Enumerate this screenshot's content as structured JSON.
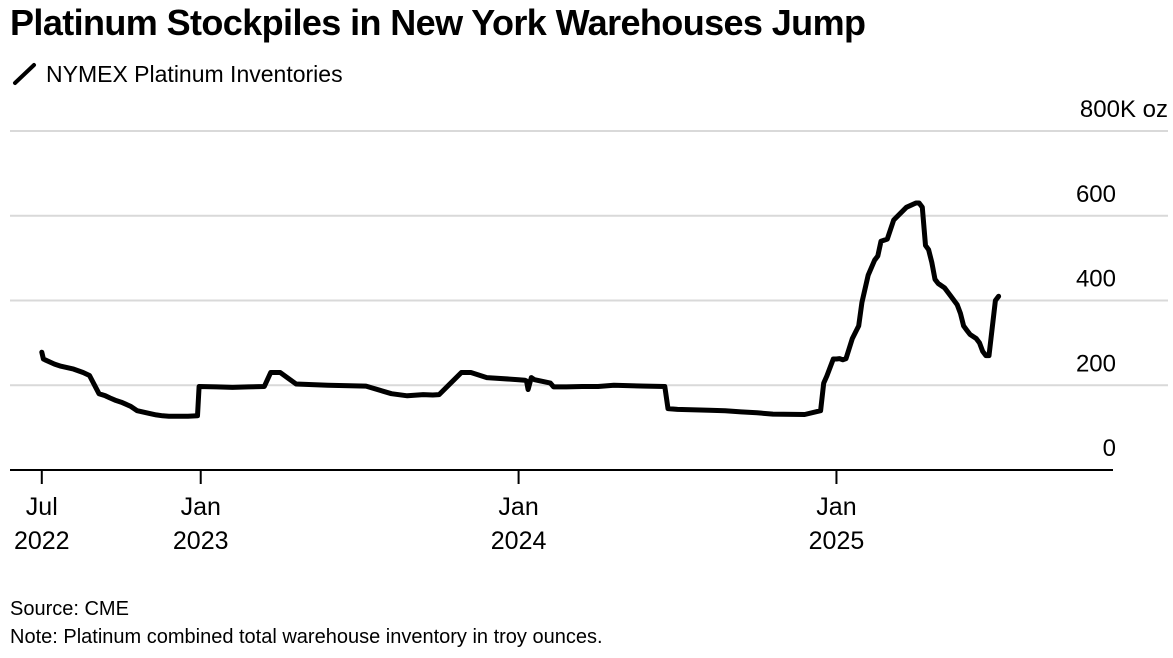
{
  "title": "Platinum Stockpiles in New York Warehouses Jump",
  "legend": {
    "label": "NYMEX Platinum Inventories",
    "color": "#000000"
  },
  "source": "Source: CME",
  "note": "Note: Platinum combined total warehouse inventory in troy ounces.",
  "chart_data": {
    "type": "line",
    "title": "Platinum Stockpiles in New York Warehouses Jump",
    "series": [
      {
        "name": "NYMEX Platinum Inventories",
        "color": "#000000",
        "x": [
          2022.5,
          2022.505,
          2022.51,
          2022.54,
          2022.56,
          2022.6,
          2022.63,
          2022.65,
          2022.68,
          2022.7,
          2022.715,
          2022.73,
          2022.75,
          2022.78,
          2022.8,
          2022.84,
          2022.86,
          2022.88,
          2022.9,
          2022.93,
          2022.96,
          2022.99,
          2022.995,
          2023.05,
          2023.1,
          2023.15,
          2023.2,
          2023.22,
          2023.25,
          2023.3,
          2023.4,
          2023.52,
          2023.6,
          2023.65,
          2023.7,
          2023.73,
          2023.75,
          2023.82,
          2023.85,
          2023.9,
          2024.0,
          2024.02,
          2024.025,
          2024.03,
          2024.04,
          2024.05,
          2024.1,
          2024.11,
          2024.15,
          2024.2,
          2024.25,
          2024.3,
          2024.4,
          2024.46,
          2024.47,
          2024.5,
          2024.6,
          2024.65,
          2024.7,
          2024.75,
          2024.8,
          2024.9,
          2024.95,
          2024.96,
          2024.97,
          2024.99,
          2025.0,
          2025.01,
          2025.02,
          2025.03,
          2025.05,
          2025.07,
          2025.08,
          2025.1,
          2025.12,
          2025.13,
          2025.14,
          2025.16,
          2025.18,
          2025.22,
          2025.25,
          2025.26,
          2025.27,
          2025.28,
          2025.29,
          2025.3,
          2025.31,
          2025.32,
          2025.34,
          2025.36,
          2025.38,
          2025.39,
          2025.4,
          2025.41,
          2025.42,
          2025.44,
          2025.45,
          2025.46,
          2025.47,
          2025.48,
          2025.5,
          2025.51
        ],
        "values": [
          278,
          262,
          260,
          250,
          245,
          238,
          230,
          223,
          180,
          175,
          170,
          165,
          160,
          150,
          140,
          133,
          130,
          128,
          127,
          127,
          127,
          128,
          197,
          196,
          195,
          196,
          197,
          230,
          230,
          203,
          200,
          198,
          180,
          175,
          178,
          177,
          178,
          230,
          230,
          218,
          213,
          212,
          210,
          190,
          218,
          213,
          205,
          196,
          196,
          197,
          197,
          200,
          198,
          197,
          145,
          143,
          141,
          140,
          137,
          135,
          132,
          131,
          140,
          205,
          222,
          262,
          262,
          263,
          260,
          263,
          310,
          340,
          395,
          460,
          495,
          505,
          540,
          545,
          590,
          620,
          630,
          630,
          620,
          530,
          520,
          490,
          450,
          440,
          430,
          410,
          390,
          370,
          340,
          330,
          320,
          310,
          300,
          280,
          270,
          270,
          400,
          410
        ]
      }
    ],
    "x_ticks": [
      {
        "value": 2022.5,
        "label": [
          "Jul",
          "2022"
        ]
      },
      {
        "value": 2023.0,
        "label": [
          "Jan",
          "2023"
        ]
      },
      {
        "value": 2024.0,
        "label": [
          "Jan",
          "2024"
        ]
      },
      {
        "value": 2025.0,
        "label": [
          "Jan",
          "2025"
        ]
      }
    ],
    "y_ticks": [
      {
        "value": 0,
        "label": "0"
      },
      {
        "value": 200,
        "label": "200"
      },
      {
        "value": 400,
        "label": "400"
      },
      {
        "value": 600,
        "label": "600"
      },
      {
        "value": 800,
        "label": "800K oz"
      }
    ],
    "xlim": [
      2022.4,
      2025.87
    ],
    "ylim": [
      0,
      800
    ],
    "ylabel": "K oz",
    "xlabel": "",
    "grid": true,
    "legend_position": "top-left"
  }
}
